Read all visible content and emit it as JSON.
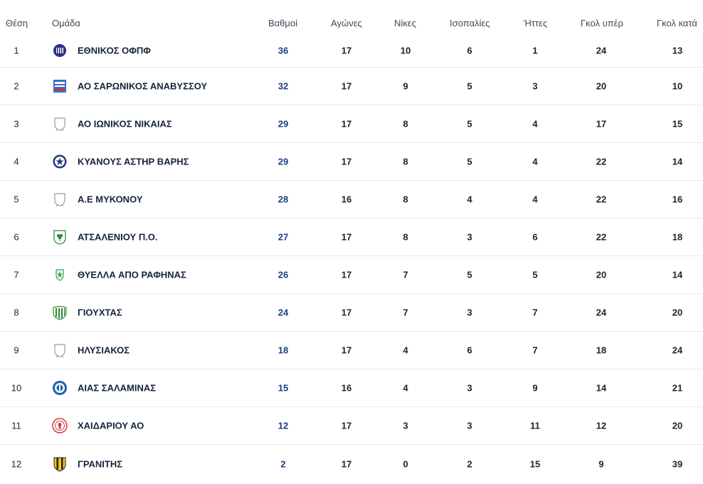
{
  "headers": {
    "position": "Θέση",
    "team": "Ομάδα",
    "points": "Βαθμοί",
    "played": "Αγώνες",
    "wins": "Νίκες",
    "draws": "Ισοπαλίες",
    "losses": "Ήττες",
    "goals_for": "Γκολ υπέρ",
    "goals_against": "Γκολ κατά"
  },
  "rows": [
    {
      "pos": "1",
      "team": "ΕΘΝΙΚΟΣ ΟΦΠΦ",
      "logo": "ethnikos-crest-icon",
      "points": "36",
      "played": "17",
      "wins": "10",
      "draws": "6",
      "losses": "1",
      "gf": "24",
      "ga": "13"
    },
    {
      "pos": "2",
      "team": "ΑΟ ΣΑΡΩΝΙΚΟΣ ΑΝΑΒΥΣΣΟΥ",
      "logo": "saronikos-crest-icon",
      "points": "32",
      "played": "17",
      "wins": "9",
      "draws": "5",
      "losses": "3",
      "gf": "20",
      "ga": "10"
    },
    {
      "pos": "3",
      "team": "ΑΟ ΙΩΝΙΚΟΣ ΝΙΚΑΙΑΣ",
      "logo": "placeholder-shield-icon",
      "points": "29",
      "played": "17",
      "wins": "8",
      "draws": "5",
      "losses": "4",
      "gf": "17",
      "ga": "15"
    },
    {
      "pos": "4",
      "team": "ΚΥΑΝΟΥΣ ΑΣΤΗΡ ΒΑΡΗΣ",
      "logo": "star-crest-icon",
      "points": "29",
      "played": "17",
      "wins": "8",
      "draws": "5",
      "losses": "4",
      "gf": "22",
      "ga": "14"
    },
    {
      "pos": "5",
      "team": "Α.Ε ΜΥΚΟΝΟΥ",
      "logo": "placeholder-shield-icon",
      "points": "28",
      "played": "16",
      "wins": "8",
      "draws": "4",
      "losses": "4",
      "gf": "22",
      "ga": "16"
    },
    {
      "pos": "6",
      "team": "ΑΤΣΑΛΕΝΙΟΥ Π.Ο.",
      "logo": "clover-shield-icon",
      "points": "27",
      "played": "17",
      "wins": "8",
      "draws": "3",
      "losses": "6",
      "gf": "22",
      "ga": "18"
    },
    {
      "pos": "7",
      "team": "ΘΥΕΛΛΑ ΑΠΟ ΡΑΦΗΝΑΣ",
      "logo": "green-crest-icon",
      "points": "26",
      "played": "17",
      "wins": "7",
      "draws": "5",
      "losses": "5",
      "gf": "20",
      "ga": "14"
    },
    {
      "pos": "8",
      "team": "ΓΙΟΥΧΤΑΣ",
      "logo": "green-stripes-crest-icon",
      "points": "24",
      "played": "17",
      "wins": "7",
      "draws": "3",
      "losses": "7",
      "gf": "24",
      "ga": "20"
    },
    {
      "pos": "9",
      "team": "ΗΛΥΣΙΑΚΟΣ",
      "logo": "placeholder-shield-icon",
      "points": "18",
      "played": "17",
      "wins": "4",
      "draws": "6",
      "losses": "7",
      "gf": "18",
      "ga": "24"
    },
    {
      "pos": "10",
      "team": "ΑΙΑΣ ΣΑΛΑΜΙΝΑΣ",
      "logo": "blue-circle-crest-icon",
      "points": "15",
      "played": "16",
      "wins": "4",
      "draws": "3",
      "losses": "9",
      "gf": "14",
      "ga": "21"
    },
    {
      "pos": "11",
      "team": "ΧΑΙΔΑΡΙΟΥ ΑΟ",
      "logo": "red-circle-crest-icon",
      "points": "12",
      "played": "17",
      "wins": "3",
      "draws": "3",
      "losses": "11",
      "gf": "12",
      "ga": "20"
    },
    {
      "pos": "12",
      "team": "ΓΡΑΝΙΤΗΣ",
      "logo": "yellow-black-shield-icon",
      "points": "2",
      "played": "17",
      "wins": "0",
      "draws": "2",
      "losses": "15",
      "gf": "9",
      "ga": "39"
    }
  ],
  "colors": {
    "points": "#1f3d82",
    "text": "#1a2330",
    "header": "#3c4a57",
    "divider": "#e8e8e8"
  }
}
